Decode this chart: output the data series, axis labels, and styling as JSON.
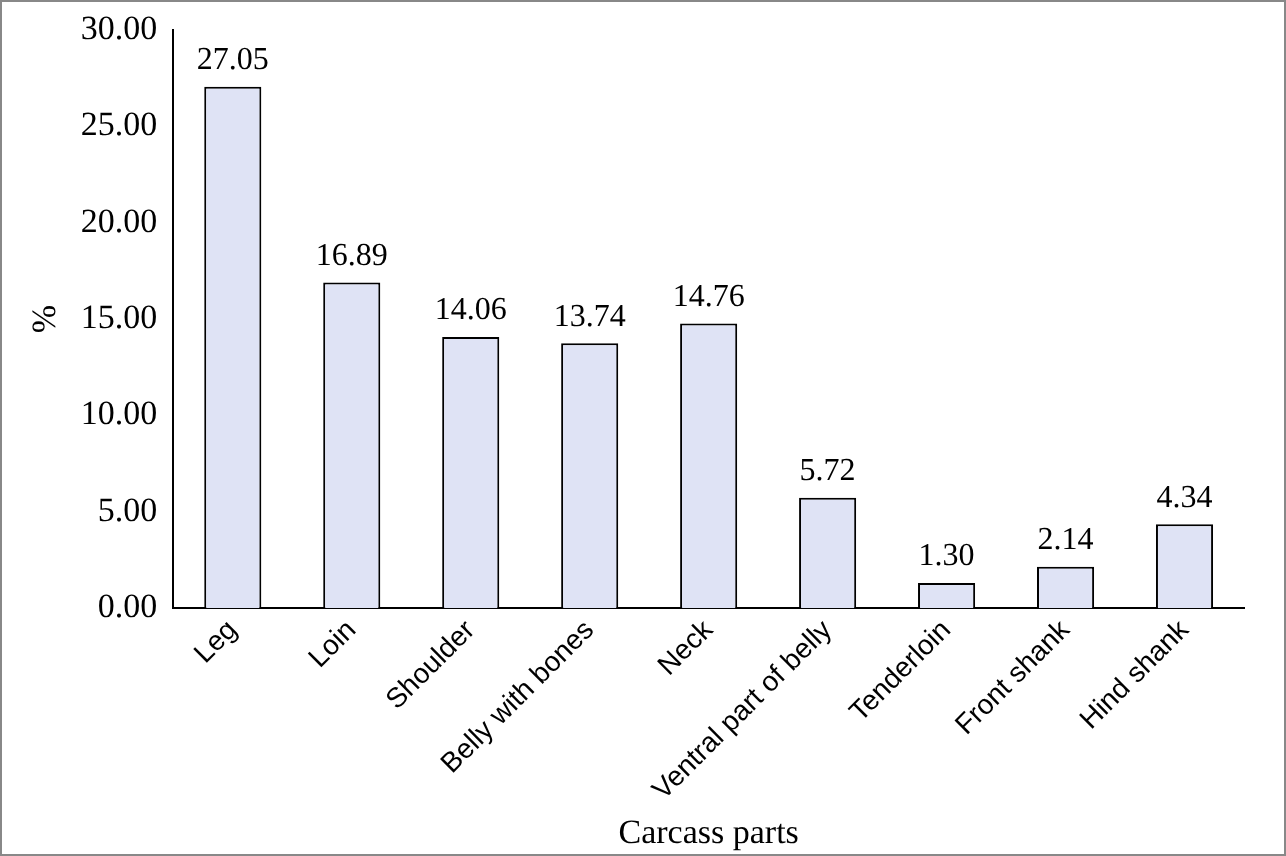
{
  "chart_data": {
    "type": "bar",
    "xlabel": "Carcass parts",
    "ylabel": "%",
    "categories": [
      "Leg",
      "Loin",
      "Shoulder",
      "Belly with bones",
      "Neck",
      "Ventral part of belly",
      "Tenderloin",
      "Front shank",
      "Hind shank"
    ],
    "values": [
      27.05,
      16.89,
      14.06,
      13.74,
      14.76,
      5.72,
      1.3,
      2.14,
      4.34
    ],
    "value_labels": [
      "27.05",
      "16.89",
      "14.06",
      "13.74",
      "14.76",
      "5.72",
      "1.30",
      "2.14",
      "4.34"
    ],
    "color": "#dfe3f5",
    "ylim": [
      0,
      30
    ],
    "yticks": [
      {
        "value": 0,
        "label": "0.00"
      },
      {
        "value": 5,
        "label": "5.00"
      },
      {
        "value": 10,
        "label": "10.00"
      },
      {
        "value": 15,
        "label": "15.00"
      },
      {
        "value": 20,
        "label": "20.00"
      },
      {
        "value": 25,
        "label": "25.00"
      },
      {
        "value": 30,
        "label": "30.00"
      }
    ],
    "grid": false,
    "legend": false
  }
}
